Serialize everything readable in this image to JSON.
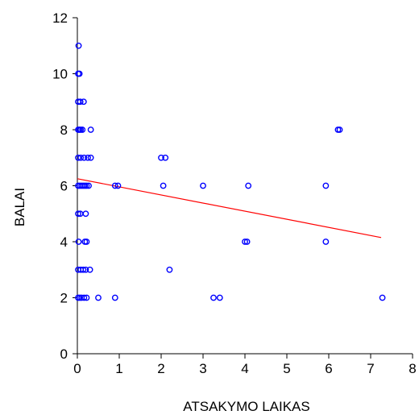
{
  "chart_data": {
    "type": "scatter",
    "title": "",
    "xlabel": "ATSAKYMO  LAIKAS",
    "ylabel": "BALAI",
    "xlim": [
      0,
      8
    ],
    "ylim": [
      0,
      12
    ],
    "x_ticks": [
      "0",
      "1",
      "2",
      "3",
      "4",
      "5",
      "6",
      "7",
      "8"
    ],
    "y_ticks": [
      "0",
      "2",
      "4",
      "6",
      "8",
      "10",
      "12"
    ],
    "grid": false,
    "legend": "none",
    "point_color": "#0000ff",
    "line_color": "#ff0000",
    "points": [
      {
        "x": 0.03,
        "y": 11
      },
      {
        "x": 0.02,
        "y": 10
      },
      {
        "x": 0.05,
        "y": 10
      },
      {
        "x": 0.02,
        "y": 9
      },
      {
        "x": 0.07,
        "y": 9
      },
      {
        "x": 0.15,
        "y": 9
      },
      {
        "x": 0.02,
        "y": 8
      },
      {
        "x": 0.05,
        "y": 8
      },
      {
        "x": 0.08,
        "y": 8
      },
      {
        "x": 0.12,
        "y": 8
      },
      {
        "x": 0.32,
        "y": 8
      },
      {
        "x": 0.02,
        "y": 7
      },
      {
        "x": 0.08,
        "y": 7
      },
      {
        "x": 0.16,
        "y": 7
      },
      {
        "x": 0.25,
        "y": 7
      },
      {
        "x": 0.32,
        "y": 7
      },
      {
        "x": 0.02,
        "y": 6
      },
      {
        "x": 0.06,
        "y": 6
      },
      {
        "x": 0.1,
        "y": 6
      },
      {
        "x": 0.14,
        "y": 6
      },
      {
        "x": 0.18,
        "y": 6
      },
      {
        "x": 0.22,
        "y": 6
      },
      {
        "x": 0.27,
        "y": 6
      },
      {
        "x": 0.02,
        "y": 5
      },
      {
        "x": 0.07,
        "y": 5
      },
      {
        "x": 0.2,
        "y": 5
      },
      {
        "x": 0.03,
        "y": 4
      },
      {
        "x": 0.18,
        "y": 4
      },
      {
        "x": 0.22,
        "y": 4
      },
      {
        "x": 0.02,
        "y": 3
      },
      {
        "x": 0.08,
        "y": 3
      },
      {
        "x": 0.14,
        "y": 3
      },
      {
        "x": 0.2,
        "y": 3
      },
      {
        "x": 0.3,
        "y": 3
      },
      {
        "x": 0.02,
        "y": 2
      },
      {
        "x": 0.06,
        "y": 2
      },
      {
        "x": 0.1,
        "y": 2
      },
      {
        "x": 0.16,
        "y": 2
      },
      {
        "x": 0.22,
        "y": 2
      },
      {
        "x": 0.5,
        "y": 2
      },
      {
        "x": 0.9,
        "y": 2
      },
      {
        "x": 0.9,
        "y": 6
      },
      {
        "x": 0.97,
        "y": 6
      },
      {
        "x": 2.0,
        "y": 7
      },
      {
        "x": 2.1,
        "y": 7
      },
      {
        "x": 2.05,
        "y": 6
      },
      {
        "x": 2.2,
        "y": 3
      },
      {
        "x": 3.0,
        "y": 6
      },
      {
        "x": 3.25,
        "y": 2
      },
      {
        "x": 3.4,
        "y": 2
      },
      {
        "x": 4.0,
        "y": 4
      },
      {
        "x": 4.05,
        "y": 4
      },
      {
        "x": 4.08,
        "y": 6
      },
      {
        "x": 5.93,
        "y": 6
      },
      {
        "x": 5.93,
        "y": 4
      },
      {
        "x": 6.22,
        "y": 8
      },
      {
        "x": 6.26,
        "y": 8
      },
      {
        "x": 7.28,
        "y": 2
      }
    ],
    "fit_line": {
      "x": [
        0,
        7.25
      ],
      "y": [
        6.25,
        4.15
      ]
    }
  }
}
